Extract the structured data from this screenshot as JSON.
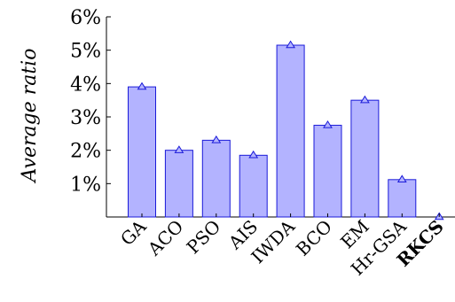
{
  "chart_data": {
    "type": "bar",
    "categories": [
      "GA",
      "ACO",
      "PSO",
      "AIS",
      "IWDA",
      "BCO",
      "EM",
      "Hr-GSA",
      "RKCS"
    ],
    "bold_categories": [
      "RKCS"
    ],
    "values": [
      3.9,
      2.0,
      2.3,
      1.85,
      5.15,
      2.75,
      3.5,
      1.12,
      0.0
    ],
    "ylabel": "Average ratio",
    "ylim": [
      0,
      6
    ],
    "yticks": [
      1,
      2,
      3,
      4,
      5,
      6
    ],
    "ytick_labels": [
      "1%",
      "2%",
      "3%",
      "4%",
      "5%",
      "6%"
    ],
    "bar_fill": "#b3b3ff",
    "bar_stroke": "#1a1ad9",
    "marker": "triangle",
    "marker_color": "#1a1ad9",
    "grid": false
  }
}
